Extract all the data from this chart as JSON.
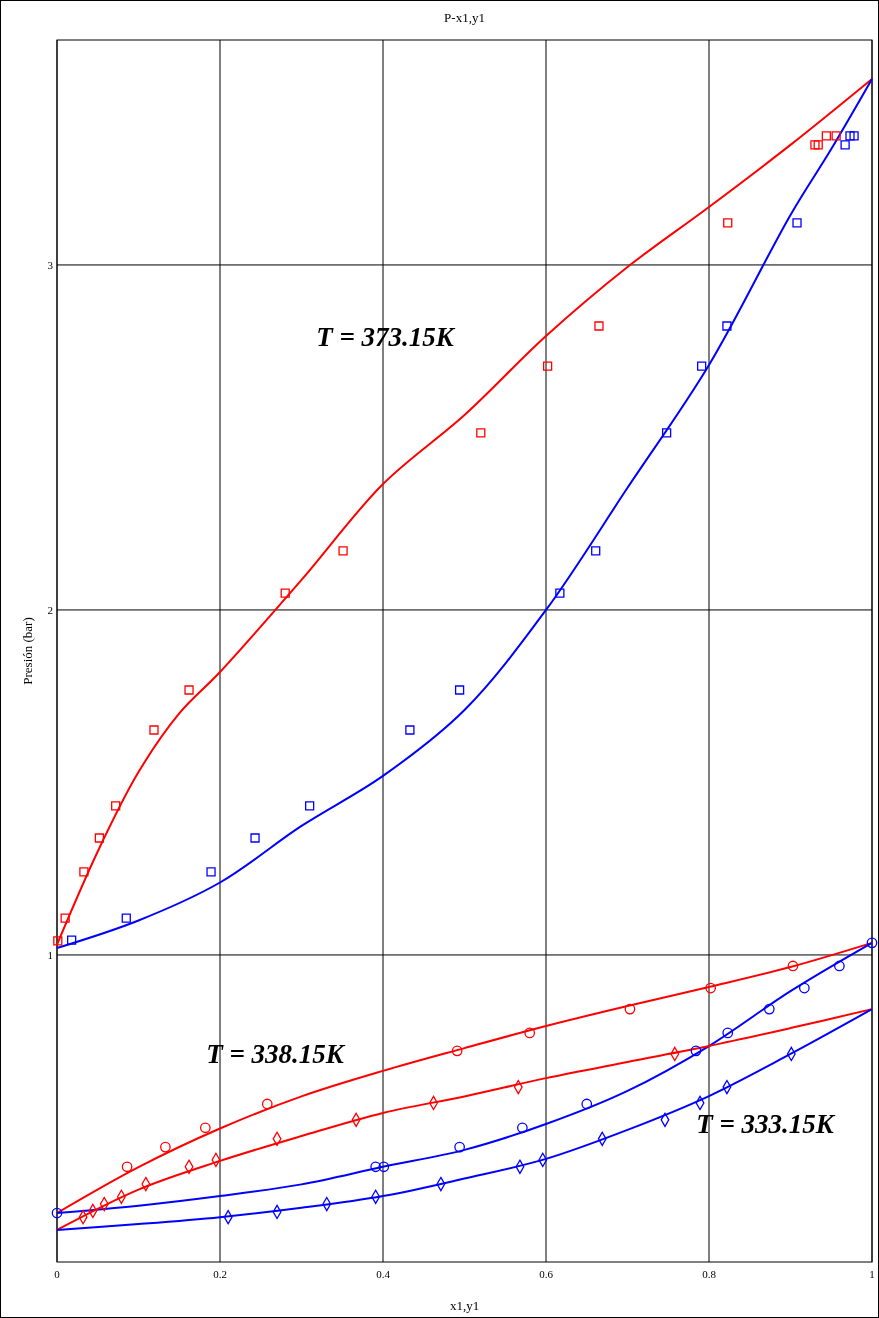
{
  "chart_data": {
    "type": "line",
    "title": "P-x1,y1",
    "xlabel": "x1,y1",
    "ylabel": "Presión (bar)",
    "xlim": [
      0,
      1
    ],
    "ylim": [
      0.11,
      3.652
    ],
    "xticks": [
      0,
      0.2,
      0.4,
      0.6,
      0.8,
      1
    ],
    "yticks": [
      1,
      2,
      3
    ],
    "grid": true,
    "annotations": [
      "T = 373.15K",
      "T = 338.15K",
      "T = 333.15K"
    ],
    "series": [
      {
        "color": "#ff0000",
        "x": [
          0,
          0.05,
          0.1,
          0.15,
          0.2,
          0.3,
          0.4,
          0.5,
          0.6,
          0.7,
          0.8,
          0.9,
          1
        ],
        "values": [
          1.03,
          1.3,
          1.53,
          1.7,
          1.82,
          2.087,
          2.365,
          2.565,
          2.794,
          2.994,
          3.168,
          3.348,
          3.539
        ]
      },
      {
        "color": "#0000ff",
        "x": [
          0,
          0.1,
          0.2,
          0.3,
          0.4,
          0.5,
          0.6,
          0.7,
          0.8,
          0.9,
          0.95,
          1
        ],
        "values": [
          1.02,
          1.1,
          1.21,
          1.374,
          1.519,
          1.71,
          2.0,
          2.354,
          2.71,
          3.145,
          3.336,
          3.539
        ]
      },
      {
        "type": "scatter",
        "color": "#ff0000",
        "marker": "square",
        "x": [
          0.001,
          0.01,
          0.033,
          0.052,
          0.072,
          0.119,
          0.162,
          0.28,
          0.351,
          0.52,
          0.602,
          0.665,
          0.823,
          0.93,
          0.934,
          0.944,
          0.956
        ],
        "values": [
          1.041,
          1.107,
          1.241,
          1.339,
          1.432,
          1.652,
          1.768,
          2.049,
          2.171,
          2.513,
          2.707,
          2.823,
          3.122,
          3.348,
          3.348,
          3.374,
          3.374
        ]
      },
      {
        "type": "scatter",
        "color": "#0000ff",
        "marker": "square",
        "x": [
          0.018,
          0.085,
          0.189,
          0.243,
          0.31,
          0.433,
          0.494,
          0.617,
          0.661,
          0.748,
          0.791,
          0.822,
          0.908,
          0.967,
          0.973,
          0.978
        ],
        "values": [
          1.043,
          1.107,
          1.241,
          1.339,
          1.432,
          1.652,
          1.768,
          2.049,
          2.171,
          2.513,
          2.707,
          2.823,
          3.122,
          3.348,
          3.374,
          3.374
        ]
      },
      {
        "color": "#ff0000",
        "x": [
          0,
          0.1,
          0.2,
          0.3,
          0.4,
          0.5,
          0.6,
          0.7,
          0.8,
          0.9,
          1
        ],
        "values": [
          0.252,
          0.385,
          0.497,
          0.59,
          0.664,
          0.73,
          0.794,
          0.852,
          0.907,
          0.965,
          1.035
        ]
      },
      {
        "color": "#0000ff",
        "x": [
          0,
          0.1,
          0.2,
          0.3,
          0.4,
          0.5,
          0.6,
          0.7,
          0.8,
          0.9,
          1
        ],
        "values": [
          0.252,
          0.273,
          0.301,
          0.335,
          0.386,
          0.435,
          0.51,
          0.606,
          0.736,
          0.895,
          1.035
        ]
      },
      {
        "color": "#ff0000",
        "x": [
          0,
          0.1,
          0.2,
          0.3,
          0.4,
          0.5,
          0.6,
          0.7,
          0.8,
          0.9,
          1
        ],
        "values": [
          0.203,
          0.32,
          0.403,
          0.475,
          0.542,
          0.59,
          0.643,
          0.69,
          0.736,
          0.788,
          0.843
        ]
      },
      {
        "color": "#0000ff",
        "x": [
          0,
          0.1,
          0.2,
          0.3,
          0.4,
          0.5,
          0.6,
          0.7,
          0.8,
          0.9,
          1
        ],
        "values": [
          0.203,
          0.22,
          0.24,
          0.267,
          0.301,
          0.352,
          0.409,
          0.493,
          0.591,
          0.713,
          0.843
        ]
      },
      {
        "type": "scatter",
        "color": "#ff0000",
        "marker": "circle",
        "x": [
          0.086,
          0.133,
          0.182,
          0.258,
          0.491,
          0.58,
          0.703,
          0.802,
          0.903
        ],
        "values": [
          0.386,
          0.443,
          0.499,
          0.568,
          0.722,
          0.774,
          0.843,
          0.904,
          0.968
        ]
      },
      {
        "type": "scatter",
        "color": "#0000ff",
        "marker": "circle",
        "x": [
          0,
          0.391,
          0.401,
          0.494,
          0.571,
          0.65,
          0.784,
          0.823,
          0.874,
          0.917,
          0.96,
          1
        ],
        "values": [
          0.252,
          0.386,
          0.386,
          0.443,
          0.499,
          0.568,
          0.722,
          0.774,
          0.843,
          0.904,
          0.968,
          1.035
        ]
      },
      {
        "type": "scatter",
        "color": "#ff0000",
        "marker": "diamond",
        "x": [
          0.032,
          0.044,
          0.058,
          0.079,
          0.109,
          0.162,
          0.195,
          0.27,
          0.367,
          0.462,
          0.566,
          0.758
        ],
        "values": [
          0.24,
          0.258,
          0.278,
          0.299,
          0.336,
          0.386,
          0.406,
          0.467,
          0.522,
          0.571,
          0.617,
          0.713
        ]
      },
      {
        "type": "scatter",
        "color": "#0000ff",
        "marker": "diamond",
        "x": [
          0.21,
          0.27,
          0.331,
          0.391,
          0.471,
          0.568,
          0.596,
          0.669,
          0.746,
          0.789,
          0.822,
          0.901
        ],
        "values": [
          0.24,
          0.255,
          0.278,
          0.299,
          0.336,
          0.386,
          0.406,
          0.467,
          0.522,
          0.571,
          0.617,
          0.713
        ]
      }
    ]
  }
}
